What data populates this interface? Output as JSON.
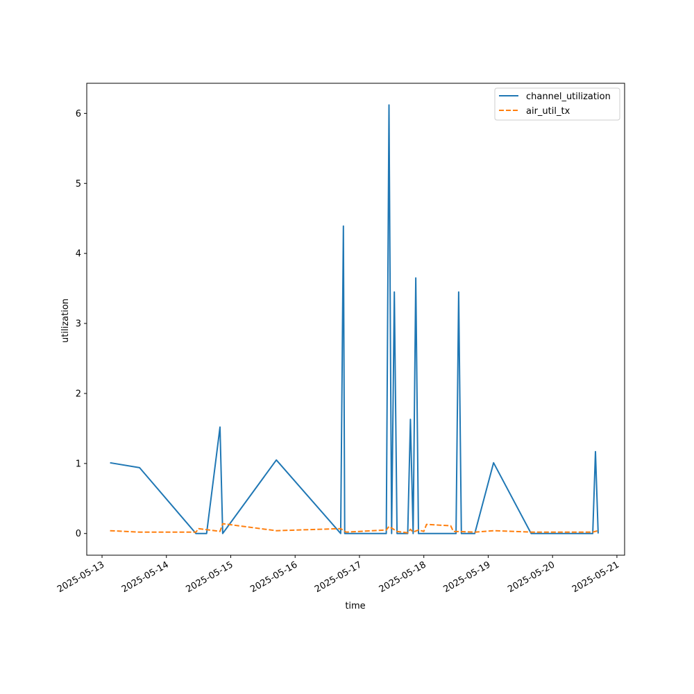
{
  "chart_data": {
    "type": "line",
    "xlabel": "time",
    "ylabel": "utilization",
    "x_tick_labels": [
      "2025-05-13",
      "2025-05-14",
      "2025-05-15",
      "2025-05-16",
      "2025-05-17",
      "2025-05-18",
      "2025-05-19",
      "2025-05-20",
      "2025-05-21"
    ],
    "y_ticks": [
      0,
      1,
      2,
      3,
      4,
      5,
      6
    ],
    "xlim": [
      "2025-05-12T18:18",
      "2025-05-21T02:52"
    ],
    "ylim": [
      -0.31,
      6.43
    ],
    "grid": false,
    "legend_position": "top-right",
    "series": [
      {
        "name": "channel_utilization",
        "color": "#1f77b4",
        "dash": "solid",
        "points": [
          [
            "2025-05-13T03:00",
            1.01
          ],
          [
            "2025-05-13T14:00",
            0.94
          ],
          [
            "2025-05-14T11:00",
            0.0
          ],
          [
            "2025-05-14T15:00",
            0.0
          ],
          [
            "2025-05-14T20:00",
            1.52
          ],
          [
            "2025-05-14T21:00",
            0.0
          ],
          [
            "2025-05-15T17:00",
            1.05
          ],
          [
            "2025-05-16T17:00",
            0.0
          ],
          [
            "2025-05-16T18:00",
            4.39
          ],
          [
            "2025-05-16T18:30",
            0.0
          ],
          [
            "2025-05-17T10:00",
            0.0
          ],
          [
            "2025-05-17T11:00",
            6.12
          ],
          [
            "2025-05-17T12:00",
            0.0
          ],
          [
            "2025-05-17T13:00",
            3.45
          ],
          [
            "2025-05-17T14:00",
            0.0
          ],
          [
            "2025-05-17T18:00",
            0.0
          ],
          [
            "2025-05-17T19:00",
            1.63
          ],
          [
            "2025-05-17T20:00",
            0.0
          ],
          [
            "2025-05-17T21:00",
            3.65
          ],
          [
            "2025-05-17T22:00",
            0.0
          ],
          [
            "2025-05-18T12:00",
            0.0
          ],
          [
            "2025-05-18T13:00",
            3.45
          ],
          [
            "2025-05-18T14:00",
            0.0
          ],
          [
            "2025-05-18T19:00",
            0.0
          ],
          [
            "2025-05-19T02:00",
            1.01
          ],
          [
            "2025-05-19T16:00",
            0.0
          ],
          [
            "2025-05-20T15:00",
            0.0
          ],
          [
            "2025-05-20T16:00",
            1.17
          ],
          [
            "2025-05-20T17:00",
            0.0
          ]
        ]
      },
      {
        "name": "air_util_tx",
        "color": "#ff7f0e",
        "dash": "dashed",
        "points": [
          [
            "2025-05-13T03:00",
            0.04
          ],
          [
            "2025-05-13T14:00",
            0.02
          ],
          [
            "2025-05-14T11:00",
            0.02
          ],
          [
            "2025-05-14T12:00",
            0.07
          ],
          [
            "2025-05-14T20:00",
            0.03
          ],
          [
            "2025-05-14T21:00",
            0.14
          ],
          [
            "2025-05-15T17:00",
            0.04
          ],
          [
            "2025-05-16T17:00",
            0.07
          ],
          [
            "2025-05-16T19:00",
            0.02
          ],
          [
            "2025-05-17T10:00",
            0.05
          ],
          [
            "2025-05-17T11:00",
            0.1
          ],
          [
            "2025-05-17T14:00",
            0.03
          ],
          [
            "2025-05-17T18:00",
            0.01
          ],
          [
            "2025-05-17T19:00",
            0.06
          ],
          [
            "2025-05-17T20:00",
            0.02
          ],
          [
            "2025-05-17T22:00",
            0.05
          ],
          [
            "2025-05-18T00:00",
            0.03
          ],
          [
            "2025-05-18T01:00",
            0.13
          ],
          [
            "2025-05-18T10:00",
            0.11
          ],
          [
            "2025-05-18T11:00",
            0.03
          ],
          [
            "2025-05-18T19:00",
            0.02
          ],
          [
            "2025-05-19T02:00",
            0.04
          ],
          [
            "2025-05-19T16:00",
            0.02
          ],
          [
            "2025-05-20T15:00",
            0.02
          ],
          [
            "2025-05-20T17:00",
            0.04
          ]
        ]
      }
    ]
  }
}
